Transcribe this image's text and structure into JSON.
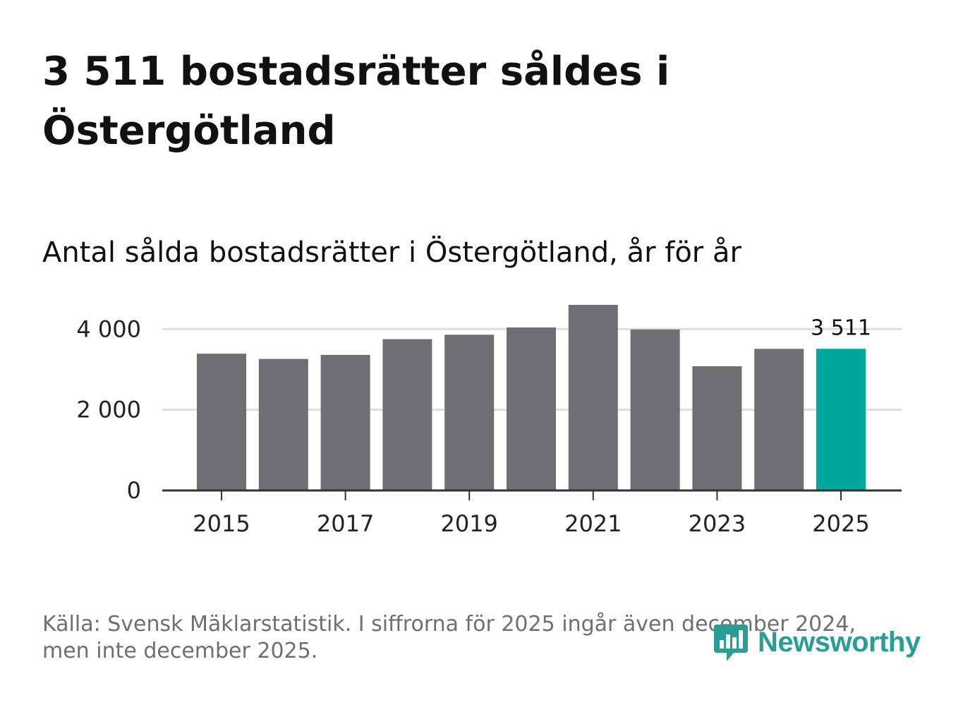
{
  "title": "3 511 bostadsrätter såldes i Östergötland",
  "subtitle": "Antal sålda bostadsrätter i Östergötland, år för år",
  "source": "Källa: Svensk Mäklarstatistik. I siffrorna för 2025 ingår även december 2024, men inte december 2025.",
  "logo": {
    "text": "Newsworthy",
    "icon": "newsworthy-chart-bubble-icon"
  },
  "colors": {
    "bar": "#6f6e74",
    "highlight": "#00a59b",
    "grid": "#dddddd",
    "axis": "#333333",
    "brand": "#2a9d96"
  },
  "chart_data": {
    "type": "bar",
    "categories": [
      "2015",
      "2016",
      "2017",
      "2018",
      "2019",
      "2020",
      "2021",
      "2022",
      "2023",
      "2024",
      "2025"
    ],
    "values": [
      3390,
      3260,
      3360,
      3750,
      3860,
      4040,
      4600,
      3990,
      3080,
      3510,
      3511
    ],
    "highlight_index": 10,
    "highlight_label": "3 511",
    "ylim": [
      0,
      4800
    ],
    "yticks": [
      0,
      2000,
      4000
    ],
    "ytick_labels": [
      "0",
      "2 000",
      "4 000"
    ],
    "xtick_labels": [
      "2015",
      "2017",
      "2019",
      "2021",
      "2023",
      "2025"
    ],
    "xlabel": "",
    "ylabel": "",
    "grid": true
  }
}
